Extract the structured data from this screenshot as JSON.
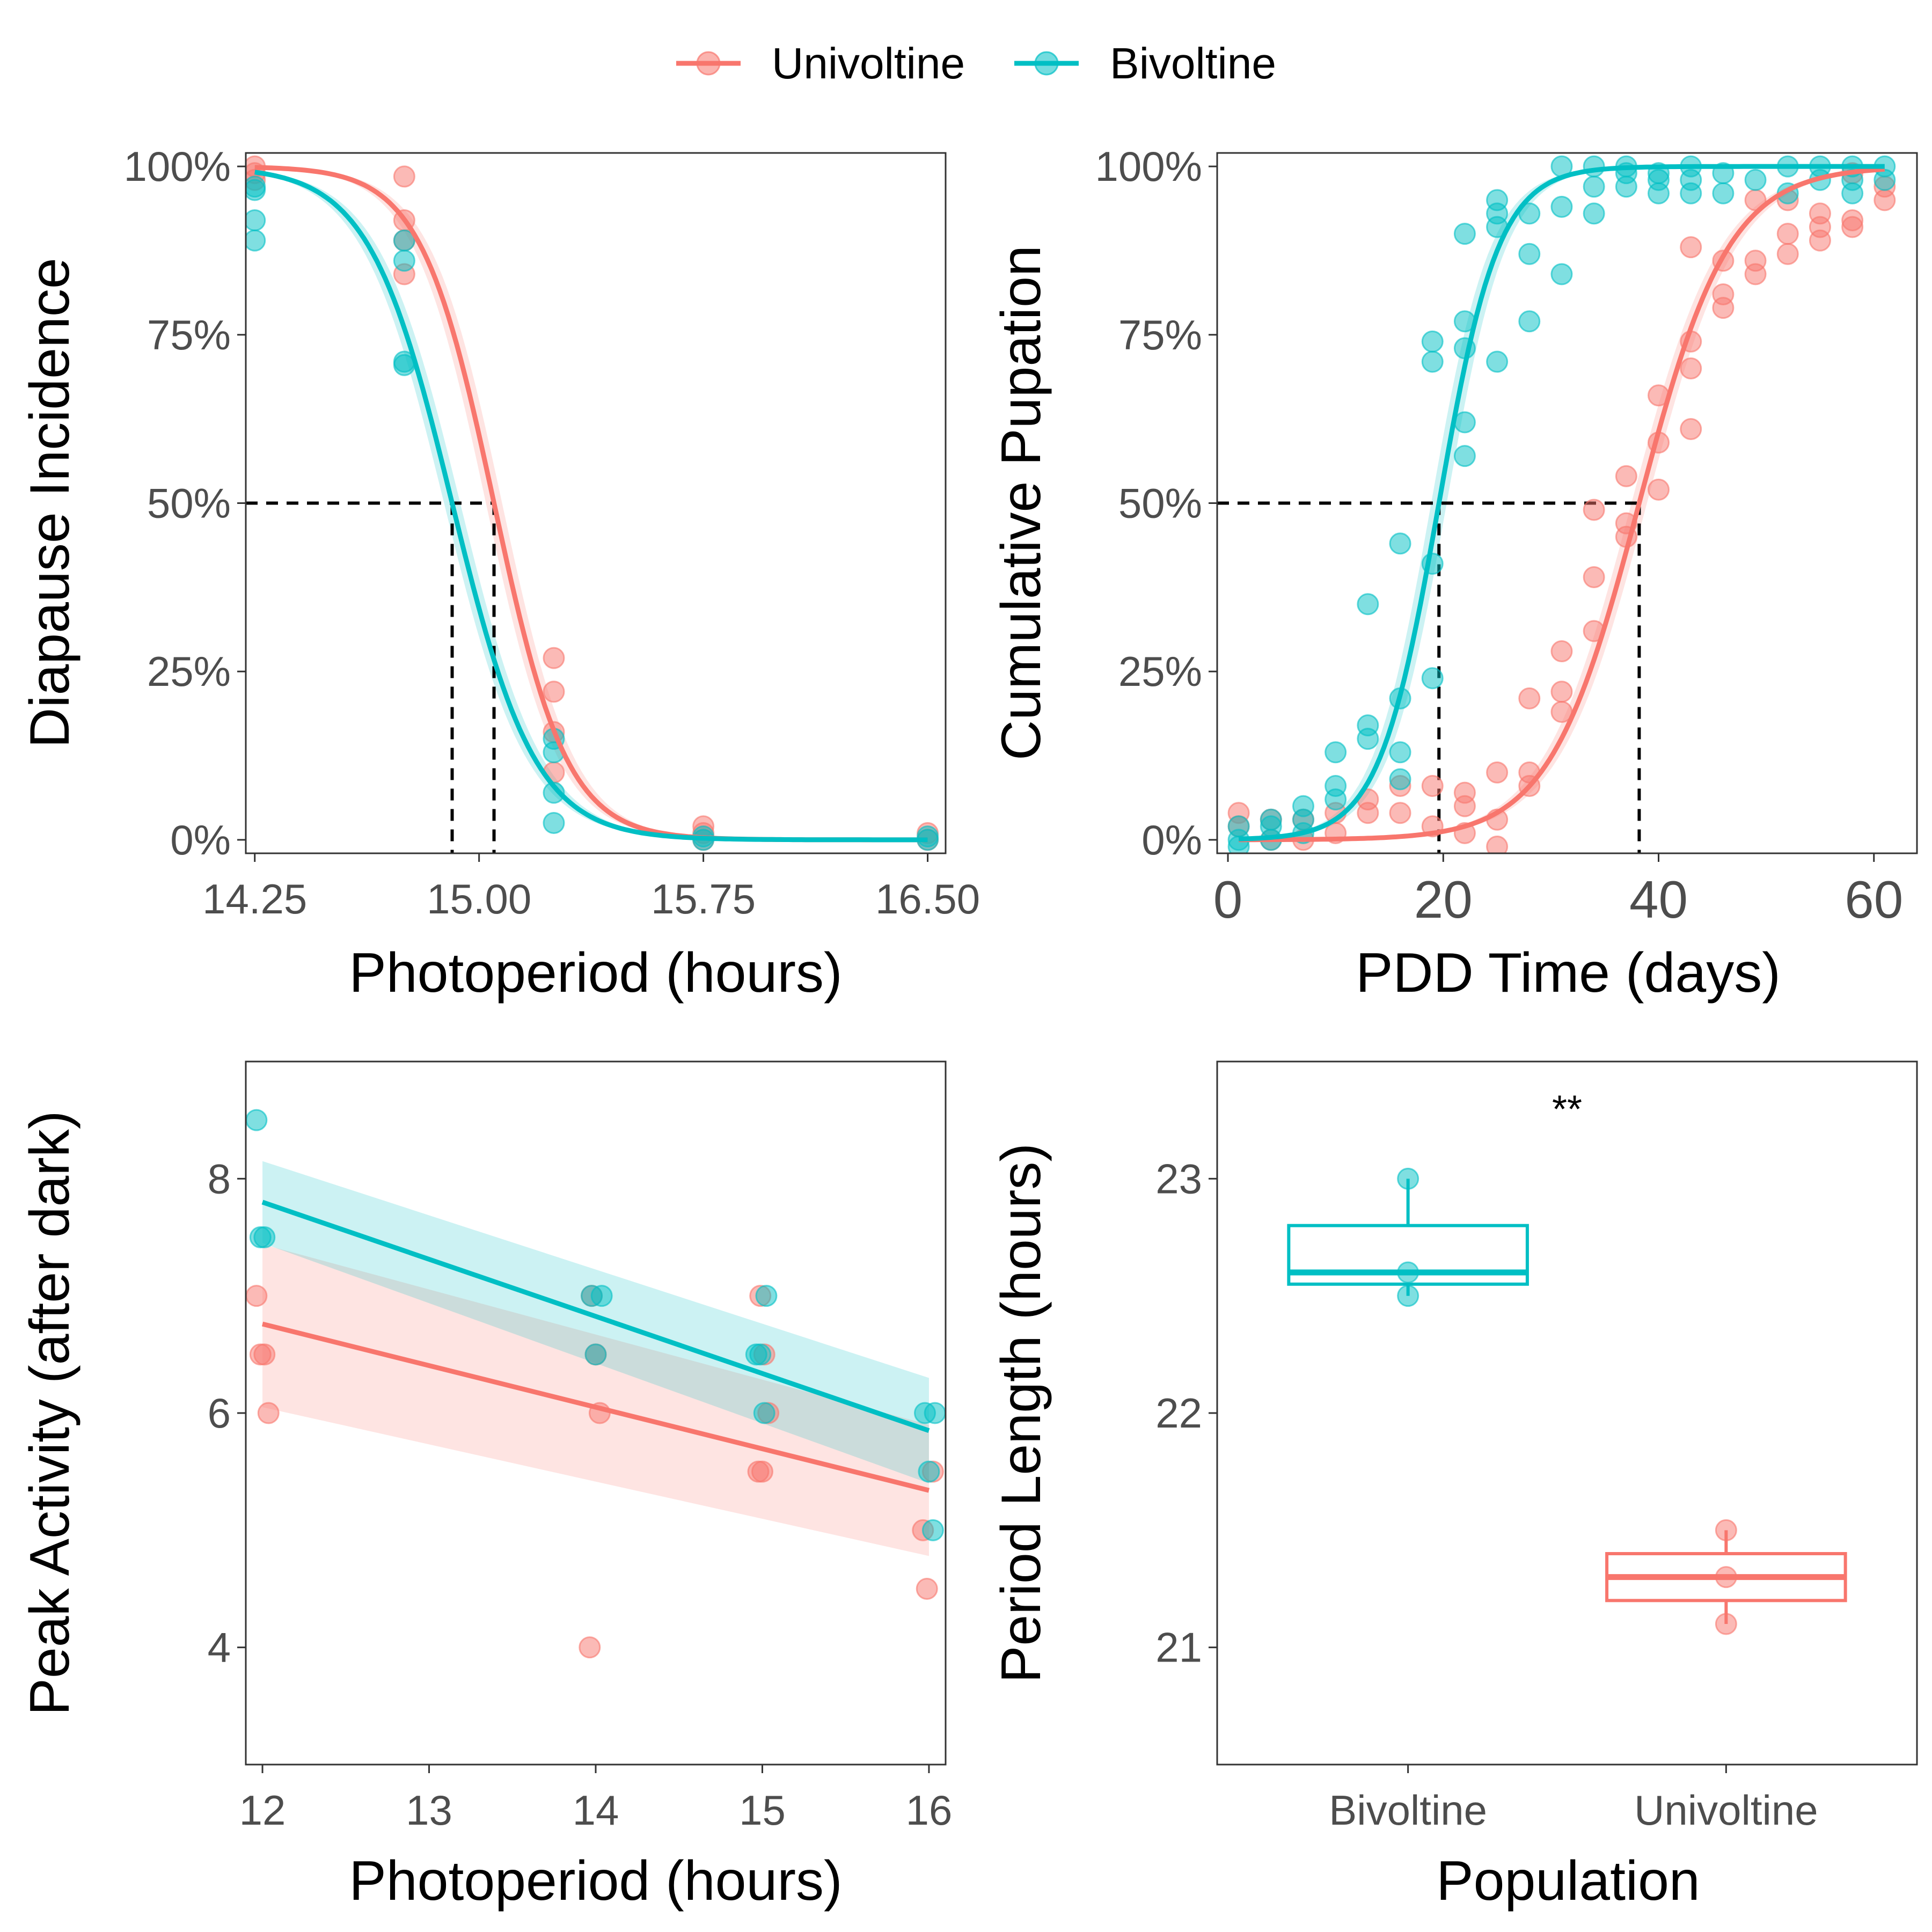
{
  "colors": {
    "Univoltine": "#F8766D",
    "Bivoltine": "#00BFC4",
    "axis": "#333333",
    "tick_text": "#4d4d4d"
  },
  "legend": {
    "position": "top-center",
    "entries": [
      "Univoltine",
      "Bivoltine"
    ]
  },
  "chart_data": [
    {
      "id": "A",
      "type": "scatter",
      "fit": "logistic",
      "xlabel": "Photoperiod (hours)",
      "ylabel": "Diapause Incidence",
      "xlim": [
        14.22,
        16.56
      ],
      "ylim": [
        -0.02,
        1.02
      ],
      "x_ticks": [
        14.25,
        15.0,
        15.75,
        16.5
      ],
      "x_tick_labels": [
        "14.25",
        "15.00",
        "15.75",
        "16.50"
      ],
      "y_ticks": [
        0,
        0.25,
        0.5,
        0.75,
        1.0
      ],
      "y_tick_labels": [
        "0%",
        "25%",
        "50%",
        "75%",
        "100%"
      ],
      "reference_y": 0.5,
      "series": [
        {
          "name": "Univoltine",
          "curve": {
            "midpoint": 15.05,
            "slope": 8.2
          },
          "midpoint": 15.05,
          "points": [
            [
              14.25,
              1.0
            ],
            [
              14.25,
              0.99
            ],
            [
              14.25,
              0.98
            ],
            [
              14.75,
              0.985
            ],
            [
              14.75,
              0.92
            ],
            [
              14.75,
              0.89
            ],
            [
              14.75,
              0.84
            ],
            [
              15.25,
              0.27
            ],
            [
              15.25,
              0.22
            ],
            [
              15.25,
              0.16
            ],
            [
              15.25,
              0.1
            ],
            [
              15.75,
              0.02
            ],
            [
              15.75,
              0.01
            ],
            [
              15.75,
              0.0
            ],
            [
              16.5,
              0.0
            ],
            [
              16.5,
              0.01
            ]
          ]
        },
        {
          "name": "Bivoltine",
          "curve": {
            "midpoint": 14.91,
            "slope": 7.2
          },
          "midpoint": 14.91,
          "points": [
            [
              14.25,
              0.97
            ],
            [
              14.25,
              0.965
            ],
            [
              14.25,
              0.92
            ],
            [
              14.25,
              0.89
            ],
            [
              14.75,
              0.89
            ],
            [
              14.75,
              0.86
            ],
            [
              14.75,
              0.71
            ],
            [
              14.75,
              0.705
            ],
            [
              15.25,
              0.15
            ],
            [
              15.25,
              0.13
            ],
            [
              15.25,
              0.07
            ],
            [
              15.25,
              0.025
            ],
            [
              15.75,
              0.005
            ],
            [
              15.75,
              0.0
            ],
            [
              16.5,
              0.0
            ],
            [
              16.5,
              0.005
            ]
          ]
        }
      ]
    },
    {
      "id": "B",
      "type": "scatter",
      "fit": "logistic",
      "xlabel": "PDD Time (days)",
      "ylabel": "Cumulative Pupation",
      "xlim": [
        -1,
        64
      ],
      "ylim": [
        -0.02,
        1.02
      ],
      "x_ticks": [
        0,
        20,
        40,
        60
      ],
      "x_tick_labels": [
        "0",
        "20",
        "40",
        "60"
      ],
      "y_ticks": [
        0,
        0.25,
        0.5,
        0.75,
        1.0
      ],
      "y_tick_labels": [
        "0%",
        "25%",
        "50%",
        "75%",
        "100%"
      ],
      "reference_y": 0.5,
      "series": [
        {
          "name": "Univoltine",
          "curve": {
            "midpoint": 38.2,
            "slope": 0.24
          },
          "midpoint": 38.2,
          "points": [
            [
              1,
              0.04
            ],
            [
              1,
              0.02
            ],
            [
              4,
              0.03
            ],
            [
              4,
              0.0
            ],
            [
              7,
              0.03
            ],
            [
              7,
              0.0
            ],
            [
              10,
              0.01
            ],
            [
              10,
              0.04
            ],
            [
              13,
              0.06
            ],
            [
              13,
              0.04
            ],
            [
              16,
              0.08
            ],
            [
              16,
              0.04
            ],
            [
              19,
              0.08
            ],
            [
              19,
              0.02
            ],
            [
              22,
              0.07
            ],
            [
              22,
              0.05
            ],
            [
              22,
              0.01
            ],
            [
              25,
              0.1
            ],
            [
              25,
              0.03
            ],
            [
              25,
              -0.01
            ],
            [
              28,
              0.21
            ],
            [
              28,
              0.1
            ],
            [
              28,
              0.08
            ],
            [
              31,
              0.28
            ],
            [
              31,
              0.22
            ],
            [
              31,
              0.19
            ],
            [
              34,
              0.49
            ],
            [
              34,
              0.39
            ],
            [
              34,
              0.31
            ],
            [
              37,
              0.54
            ],
            [
              37,
              0.47
            ],
            [
              37,
              0.45
            ],
            [
              40,
              0.66
            ],
            [
              40,
              0.59
            ],
            [
              40,
              0.52
            ],
            [
              43,
              0.88
            ],
            [
              43,
              0.74
            ],
            [
              43,
              0.7
            ],
            [
              43,
              0.61
            ],
            [
              46,
              0.86
            ],
            [
              46,
              0.81
            ],
            [
              46,
              0.79
            ],
            [
              49,
              0.95
            ],
            [
              49,
              0.86
            ],
            [
              49,
              0.84
            ],
            [
              52,
              0.95
            ],
            [
              52,
              0.9
            ],
            [
              52,
              0.87
            ],
            [
              55,
              0.93
            ],
            [
              55,
              0.91
            ],
            [
              55,
              0.89
            ],
            [
              58,
              0.99
            ],
            [
              58,
              0.92
            ],
            [
              58,
              0.91
            ],
            [
              61,
              0.97
            ],
            [
              61,
              0.95
            ]
          ]
        },
        {
          "name": "Bivoltine",
          "curve": {
            "midpoint": 19.6,
            "slope": 0.36
          },
          "midpoint": 19.6,
          "points": [
            [
              1,
              0.02
            ],
            [
              1,
              0.0
            ],
            [
              1,
              -0.01
            ],
            [
              4,
              0.03
            ],
            [
              4,
              0.02
            ],
            [
              4,
              0.0
            ],
            [
              7,
              0.05
            ],
            [
              7,
              0.03
            ],
            [
              7,
              0.01
            ],
            [
              10,
              0.13
            ],
            [
              10,
              0.08
            ],
            [
              10,
              0.06
            ],
            [
              13,
              0.35
            ],
            [
              13,
              0.17
            ],
            [
              13,
              0.15
            ],
            [
              16,
              0.44
            ],
            [
              16,
              0.21
            ],
            [
              16,
              0.13
            ],
            [
              16,
              0.09
            ],
            [
              19,
              0.74
            ],
            [
              19,
              0.71
            ],
            [
              19,
              0.41
            ],
            [
              19,
              0.24
            ],
            [
              22,
              0.9
            ],
            [
              22,
              0.77
            ],
            [
              22,
              0.73
            ],
            [
              22,
              0.62
            ],
            [
              22,
              0.57
            ],
            [
              25,
              0.95
            ],
            [
              25,
              0.93
            ],
            [
              25,
              0.91
            ],
            [
              25,
              0.71
            ],
            [
              28,
              0.93
            ],
            [
              28,
              0.87
            ],
            [
              28,
              0.77
            ],
            [
              31,
              1.0
            ],
            [
              31,
              0.94
            ],
            [
              31,
              0.84
            ],
            [
              34,
              1.0
            ],
            [
              34,
              0.97
            ],
            [
              34,
              0.93
            ],
            [
              37,
              1.0
            ],
            [
              37,
              0.99
            ],
            [
              37,
              0.97
            ],
            [
              40,
              0.99
            ],
            [
              40,
              0.98
            ],
            [
              40,
              0.96
            ],
            [
              43,
              1.0
            ],
            [
              43,
              0.98
            ],
            [
              43,
              0.96
            ],
            [
              46,
              0.99
            ],
            [
              46,
              0.96
            ],
            [
              49,
              0.98
            ],
            [
              52,
              1.0
            ],
            [
              52,
              0.96
            ],
            [
              55,
              1.0
            ],
            [
              55,
              0.98
            ],
            [
              58,
              1.0
            ],
            [
              58,
              0.98
            ],
            [
              58,
              0.96
            ],
            [
              61,
              1.0
            ],
            [
              61,
              0.98
            ]
          ]
        }
      ]
    },
    {
      "id": "C",
      "type": "scatter",
      "fit": "linear",
      "xlabel": "Photoperiod (hours)",
      "ylabel": "Peak Activity (after dark)",
      "xlim": [
        11.9,
        16.1
      ],
      "ylim": [
        3,
        9
      ],
      "x_ticks": [
        12,
        13,
        14,
        15,
        16
      ],
      "x_tick_labels": [
        "12",
        "13",
        "14",
        "15",
        "16"
      ],
      "y_ticks": [
        4,
        6,
        8
      ],
      "y_tick_labels": [
        "4",
        "6",
        "8"
      ],
      "series": [
        {
          "name": "Univoltine",
          "line": {
            "x0": 12,
            "y0": 6.76,
            "x1": 16,
            "y1": 5.34
          },
          "band": {
            "start": [
              6.05,
              7.44
            ],
            "end": [
              4.78,
              5.9
            ]
          },
          "points": [
            [
              12,
              7.0
            ],
            [
              12,
              6.5
            ],
            [
              12,
              6.5
            ],
            [
              12,
              6.0
            ],
            [
              14,
              7.0
            ],
            [
              14,
              6.5
            ],
            [
              14,
              6.0
            ],
            [
              14,
              4.0
            ],
            [
              15,
              7.0
            ],
            [
              15,
              6.5
            ],
            [
              15,
              6.0
            ],
            [
              15,
              5.5
            ],
            [
              15,
              5.5
            ],
            [
              16,
              5.5
            ],
            [
              16,
              5.0
            ],
            [
              16,
              4.5
            ]
          ]
        },
        {
          "name": "Bivoltine",
          "line": {
            "x0": 12,
            "y0": 7.8,
            "x1": 16,
            "y1": 5.85
          },
          "band": {
            "start": [
              7.45,
              8.15
            ],
            "end": [
              5.4,
              6.3
            ]
          },
          "points": [
            [
              12,
              8.5
            ],
            [
              12,
              7.5
            ],
            [
              12,
              7.5
            ],
            [
              14,
              7.0
            ],
            [
              14,
              7.0
            ],
            [
              14,
              6.5
            ],
            [
              15,
              7.0
            ],
            [
              15,
              6.5
            ],
            [
              15,
              6.5
            ],
            [
              15,
              6.0
            ],
            [
              16,
              6.0
            ],
            [
              16,
              6.0
            ],
            [
              16,
              5.5
            ],
            [
              16,
              5.0
            ]
          ]
        }
      ]
    },
    {
      "id": "D",
      "type": "box",
      "xlabel": "Population",
      "ylabel": "Period Length (hours)",
      "categories": [
        "Bivoltine",
        "Univoltine"
      ],
      "ylim": [
        20.5,
        23.5
      ],
      "y_ticks": [
        21,
        22,
        23
      ],
      "y_tick_labels": [
        "21",
        "22",
        "23"
      ],
      "significance": "**",
      "boxes": [
        {
          "name": "Bivoltine",
          "min": 22.5,
          "q1": 22.55,
          "median": 22.6,
          "q3": 22.8,
          "max": 23.0,
          "points": [
            23.0,
            22.6,
            22.5
          ]
        },
        {
          "name": "Univoltine",
          "min": 21.1,
          "q1": 21.2,
          "median": 21.3,
          "q3": 21.4,
          "max": 21.5,
          "points": [
            21.5,
            21.3,
            21.1
          ]
        }
      ]
    }
  ]
}
